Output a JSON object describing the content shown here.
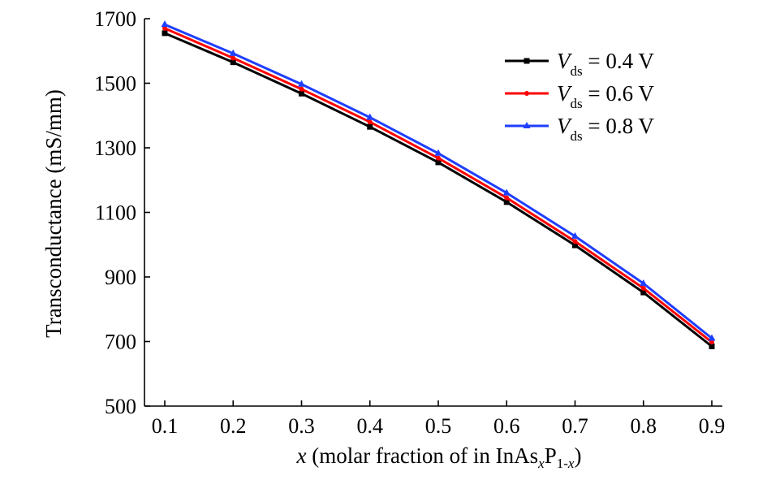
{
  "chart_data": {
    "type": "line",
    "x": [
      0.1,
      0.2,
      0.3,
      0.4,
      0.5,
      0.6,
      0.7,
      0.8,
      0.9
    ],
    "xlim": [
      0.1,
      0.9
    ],
    "ylim": [
      500,
      1700
    ],
    "x_ticks": [
      "0.1",
      "0.2",
      "0.3",
      "0.4",
      "0.5",
      "0.6",
      "0.7",
      "0.8",
      "0.9"
    ],
    "y_ticks": [
      "500",
      "700",
      "900",
      "1100",
      "1300",
      "1500",
      "1700"
    ],
    "x_tick_values": [
      0.1,
      0.2,
      0.3,
      0.4,
      0.5,
      0.6,
      0.7,
      0.8,
      0.9
    ],
    "y_tick_values": [
      500,
      700,
      900,
      1100,
      1300,
      1500,
      1700
    ],
    "ylabel": "Transconductance (mS/mm)",
    "xlabel": {
      "var": "x",
      "text1": " (molar fraction of in InAs",
      "sub1": "x",
      "text2": "P",
      "sub2": "1-",
      "sub2_var": "x",
      "text3": ")"
    },
    "legend_position": "top-right",
    "series": [
      {
        "name": "V_ds = 0.4 V",
        "label_var": "V",
        "label_sub": "ds",
        "label_rest": " = 0.4 V",
        "color": "#000000",
        "marker": "square",
        "values": [
          1655,
          1565,
          1468,
          1365,
          1255,
          1132,
          998,
          852,
          685
        ]
      },
      {
        "name": "V_ds = 0.6 V",
        "label_var": "V",
        "label_sub": "ds",
        "label_rest": " = 0.6 V",
        "color": "#ff0000",
        "marker": "dot",
        "values": [
          1670,
          1578,
          1482,
          1380,
          1268,
          1145,
          1010,
          865,
          698
        ]
      },
      {
        "name": "V_ds = 0.8 V",
        "label_var": "V",
        "label_sub": "ds",
        "label_rest": " = 0.8 V",
        "color": "#1f3fff",
        "marker": "triangle",
        "values": [
          1682,
          1592,
          1497,
          1394,
          1283,
          1160,
          1026,
          880,
          710
        ]
      }
    ]
  }
}
